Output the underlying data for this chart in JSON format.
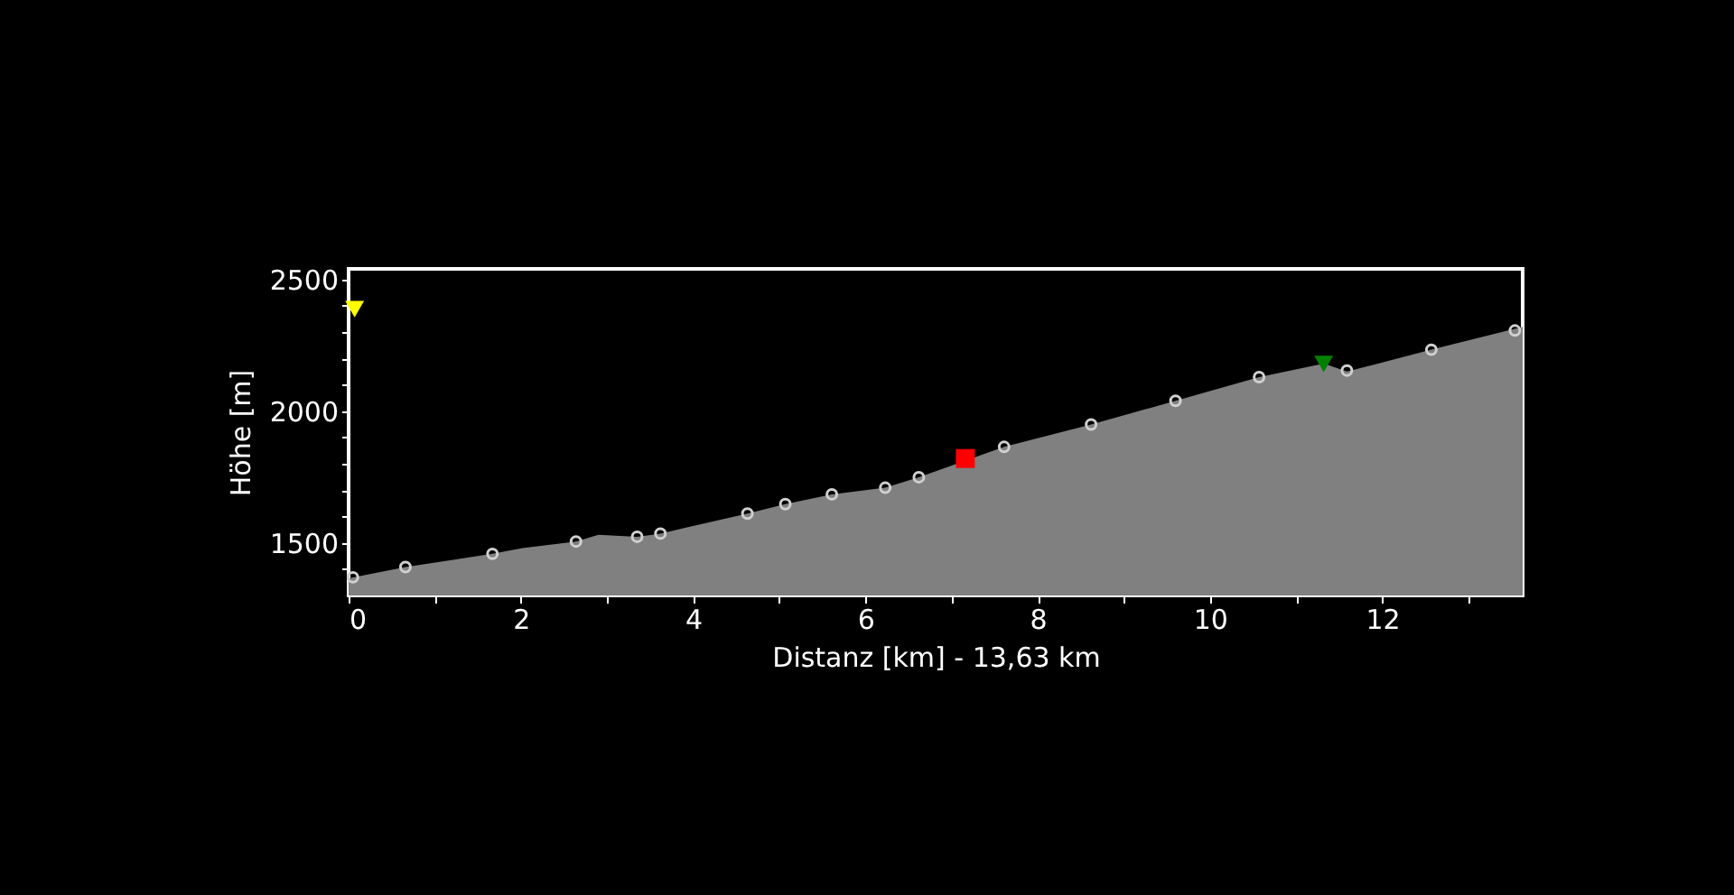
{
  "chart_data": {
    "type": "area",
    "xlabel": "Distanz [km] - 13,63 km",
    "ylabel": "Höhe [m]",
    "xlim": [
      0,
      13.63
    ],
    "ylim": [
      1300,
      2540
    ],
    "xticks": [
      0,
      {
        "value": 1,
        "label": null
      },
      2,
      {
        "value": 3,
        "label": null
      },
      4,
      {
        "value": 5,
        "label": null
      },
      6,
      {
        "value": 7,
        "label": null
      },
      8,
      {
        "value": 9,
        "label": null
      },
      10,
      {
        "value": 11,
        "label": null
      },
      12,
      {
        "value": 13,
        "label": null
      }
    ],
    "yticks": [
      {
        "value": 1400,
        "label": null
      },
      1500,
      {
        "value": 1600,
        "label": null
      },
      {
        "value": 1700,
        "label": null
      },
      {
        "value": 1800,
        "label": null
      },
      {
        "value": 1900,
        "label": null
      },
      2000,
      {
        "value": 2100,
        "label": null
      },
      {
        "value": 2200,
        "label": null
      },
      {
        "value": 2300,
        "label": null
      },
      {
        "value": 2400,
        "label": null
      },
      2500
    ],
    "grid": false,
    "series": [
      {
        "color": "#808080",
        "x": [
          0,
          0.66,
          1.67,
          2.02,
          2.64,
          2.9,
          3.35,
          3.62,
          4.63,
          5.07,
          5.61,
          6.23,
          6.62,
          7.61,
          8.62,
          9.6,
          10.57,
          11.32,
          11.59,
          12.57,
          13.63
        ],
        "values": [
          1365,
          1408,
          1458,
          1480,
          1505,
          1530,
          1523,
          1535,
          1611,
          1647,
          1684,
          1709,
          1749,
          1864,
          1949,
          2039,
          2129,
          2180,
          2150,
          2233,
          2320
        ]
      },
      {
        "type": "scatter",
        "marker": "circle",
        "color": "#d0d0d0",
        "x": [
          0.05,
          0.66,
          1.67,
          2.64,
          3.35,
          3.62,
          4.63,
          5.07,
          5.61,
          6.23,
          6.62,
          7.61,
          8.62,
          9.6,
          10.57,
          11.59,
          12.57,
          13.54
        ],
        "values": [
          1369,
          1408,
          1458,
          1505,
          1523,
          1535,
          1611,
          1647,
          1684,
          1709,
          1749,
          1864,
          1949,
          2039,
          2129,
          2154,
          2233,
          2306
        ]
      },
      {
        "type": "scatter",
        "marker": "square",
        "color": "#ff0000",
        "x": [
          7.16
        ],
        "values": [
          1820
        ]
      },
      {
        "type": "scatter",
        "marker": "triangle",
        "color": "#008000",
        "x": [
          11.32
        ],
        "values": [
          2179
        ]
      },
      {
        "type": "scatter",
        "marker": "triangle",
        "color": "#ffff00",
        "x": [
          0.07
        ],
        "values": [
          2387
        ]
      }
    ]
  }
}
